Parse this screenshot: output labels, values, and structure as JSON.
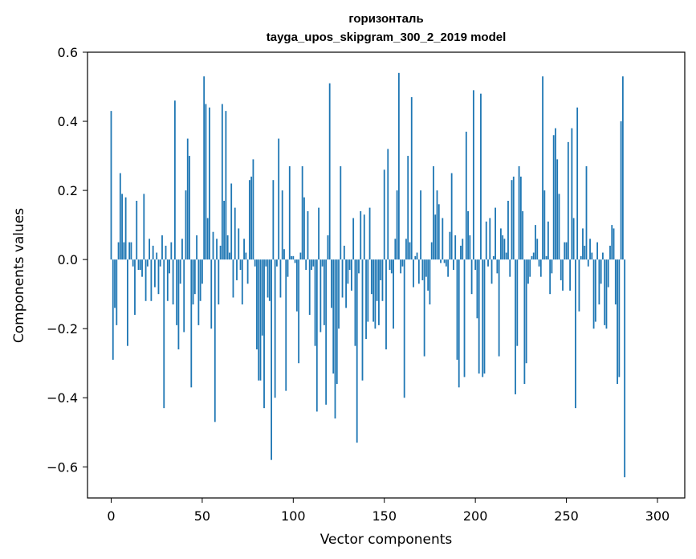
{
  "chart_data": {
    "type": "bar",
    "title_line1": "горизонталь",
    "title_line2": "tayga_upos_skipgram_300_2_2019 model",
    "xlabel": "Vector components",
    "ylabel": "Components values",
    "xlim": [
      -13,
      315
    ],
    "ylim": [
      -0.69,
      0.6
    ],
    "xticks": [
      0,
      50,
      100,
      150,
      200,
      250,
      300
    ],
    "xtick_labels": [
      "0",
      "50",
      "100",
      "150",
      "200",
      "250",
      "300"
    ],
    "yticks": [
      -0.6,
      -0.4,
      -0.2,
      0.0,
      0.2,
      0.4,
      0.6
    ],
    "ytick_labels": [
      "−0.6",
      "−0.4",
      "−0.2",
      "0.0",
      "0.2",
      "0.4",
      "0.6"
    ],
    "grid": false,
    "bar_color": "#1f77b4",
    "values": [
      0.43,
      -0.29,
      -0.14,
      -0.19,
      0.05,
      0.25,
      0.19,
      0.05,
      0.18,
      -0.25,
      0.05,
      0.05,
      -0.02,
      -0.16,
      0.17,
      -0.03,
      -0.03,
      -0.05,
      0.19,
      -0.12,
      -0.02,
      0.06,
      -0.12,
      0.04,
      -0.08,
      0.02,
      -0.1,
      -0.02,
      0.07,
      -0.43,
      0.04,
      -0.12,
      -0.04,
      0.05,
      -0.13,
      0.46,
      -0.19,
      -0.26,
      -0.07,
      0.06,
      -0.21,
      0.2,
      0.35,
      0.3,
      -0.37,
      -0.13,
      -0.1,
      0.07,
      -0.19,
      -0.12,
      -0.07,
      0.53,
      0.45,
      0.12,
      0.44,
      -0.2,
      0.08,
      -0.47,
      0.06,
      -0.13,
      0.04,
      0.45,
      0.17,
      0.43,
      0.07,
      0.02,
      0.22,
      -0.11,
      0.15,
      -0.06,
      0.09,
      -0.03,
      -0.13,
      0.06,
      0.02,
      -0.07,
      0.23,
      0.24,
      0.29,
      -0.02,
      -0.26,
      -0.35,
      -0.35,
      -0.22,
      -0.43,
      -0.02,
      -0.11,
      -0.12,
      -0.58,
      0.23,
      -0.4,
      -0.02,
      0.35,
      -0.11,
      0.2,
      0.03,
      -0.38,
      -0.05,
      0.27,
      0.01,
      0.01,
      -0.01,
      -0.15,
      -0.3,
      0.02,
      0.27,
      0.18,
      -0.03,
      0.14,
      -0.16,
      -0.03,
      -0.02,
      -0.25,
      -0.44,
      0.15,
      -0.21,
      -0.02,
      -0.19,
      -0.42,
      0.07,
      0.51,
      -0.14,
      -0.33,
      -0.46,
      -0.36,
      -0.2,
      0.27,
      -0.11,
      0.04,
      -0.14,
      -0.07,
      -0.03,
      -0.09,
      0.12,
      -0.25,
      -0.53,
      -0.04,
      0.14,
      -0.35,
      0.13,
      -0.23,
      -0.18,
      0.15,
      -0.1,
      -0.18,
      -0.2,
      -0.12,
      -0.19,
      -0.06,
      -0.12,
      0.26,
      -0.26,
      0.32,
      -0.03,
      -0.04,
      -0.2,
      0.06,
      0.2,
      0.54,
      -0.04,
      -0.02,
      -0.4,
      0.06,
      0.3,
      0.05,
      0.47,
      -0.08,
      0.01,
      0.02,
      -0.07,
      0.2,
      -0.06,
      -0.28,
      -0.05,
      -0.09,
      -0.13,
      0.05,
      0.27,
      0.13,
      0.2,
      0.16,
      -0.01,
      0.12,
      -0.01,
      -0.02,
      -0.05,
      0.08,
      0.25,
      -0.03,
      0.07,
      -0.29,
      -0.37,
      0.04,
      0.06,
      -0.34,
      0.37,
      0.14,
      0.07,
      -0.1,
      0.49,
      -0.03,
      -0.17,
      -0.33,
      0.48,
      -0.34,
      -0.33,
      0.11,
      -0.02,
      0.12,
      -0.07,
      0.01,
      0.15,
      -0.04,
      -0.28,
      0.09,
      0.07,
      0.06,
      0.02,
      0.17,
      -0.05,
      0.23,
      0.24,
      -0.39,
      -0.25,
      0.27,
      0.24,
      0.14,
      -0.36,
      -0.3,
      -0.07,
      -0.05,
      0.01,
      0.02,
      0.1,
      0.06,
      -0.02,
      -0.05,
      0.53,
      0.2,
      0.01,
      0.11,
      -0.1,
      -0.04,
      0.36,
      0.38,
      0.29,
      0.19,
      -0.06,
      -0.09,
      0.05,
      0.05,
      0.34,
      -0.09,
      0.38,
      0.12,
      -0.43,
      0.44,
      -0.15,
      0.01,
      0.09,
      0.04,
      0.27,
      -0.02,
      0.06,
      0.02,
      -0.2,
      -0.18,
      0.05,
      -0.13,
      -0.07,
      0.02,
      -0.19,
      -0.2,
      -0.08,
      0.04,
      0.1,
      0.09,
      -0.13,
      -0.36,
      -0.34,
      0.4,
      0.53,
      -0.63
    ]
  }
}
